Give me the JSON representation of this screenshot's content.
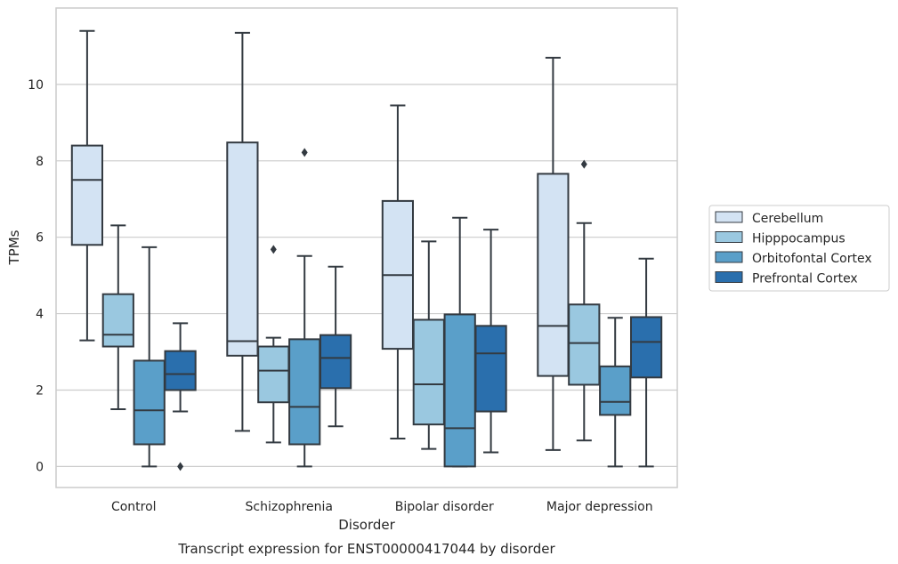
{
  "caption": "Transcript expression for ENST00000417044 by disorder",
  "chart_data": {
    "type": "box",
    "xlabel": "Disorder",
    "ylabel": "TPMs",
    "ylim": [
      -0.55,
      12.0
    ],
    "yticks": [
      0,
      2,
      4,
      6,
      8,
      10
    ],
    "grid": true,
    "legend_position": "right",
    "categories": [
      "Control",
      "Schizophrenia",
      "Bipolar disorder",
      "Major depression"
    ],
    "series": [
      {
        "name": "Cerebellum",
        "color": "#d3e3f3",
        "boxes": [
          {
            "whisker_low": 3.3,
            "q1": 5.8,
            "median": 7.5,
            "q3": 8.4,
            "whisker_high": 11.4,
            "outliers": []
          },
          {
            "whisker_low": 0.93,
            "q1": 2.9,
            "median": 3.28,
            "q3": 8.48,
            "whisker_high": 11.35,
            "outliers": []
          },
          {
            "whisker_low": 0.73,
            "q1": 3.08,
            "median": 5.01,
            "q3": 6.95,
            "whisker_high": 9.45,
            "outliers": []
          },
          {
            "whisker_low": 0.43,
            "q1": 2.37,
            "median": 3.68,
            "q3": 7.66,
            "whisker_high": 10.7,
            "outliers": []
          }
        ]
      },
      {
        "name": "Hipppocampus",
        "color": "#9ac8e0",
        "boxes": [
          {
            "whisker_low": 1.5,
            "q1": 3.14,
            "median": 3.45,
            "q3": 4.51,
            "whisker_high": 6.31,
            "outliers": []
          },
          {
            "whisker_low": 0.63,
            "q1": 1.68,
            "median": 2.51,
            "q3": 3.14,
            "whisker_high": 3.37,
            "outliers": [
              5.68
            ]
          },
          {
            "whisker_low": 0.46,
            "q1": 1.1,
            "median": 2.15,
            "q3": 3.84,
            "whisker_high": 5.89,
            "outliers": []
          },
          {
            "whisker_low": 0.68,
            "q1": 2.14,
            "median": 3.23,
            "q3": 4.24,
            "whisker_high": 6.37,
            "outliers": [
              7.91
            ]
          }
        ]
      },
      {
        "name": "Orbitofontal Cortex",
        "color": "#5a9fc9",
        "boxes": [
          {
            "whisker_low": 0.0,
            "q1": 0.58,
            "median": 1.47,
            "q3": 2.77,
            "whisker_high": 5.74,
            "outliers": []
          },
          {
            "whisker_low": 0.0,
            "q1": 0.58,
            "median": 1.56,
            "q3": 3.33,
            "whisker_high": 5.51,
            "outliers": [
              8.22
            ]
          },
          {
            "whisker_low": 0.0,
            "q1": 0.0,
            "median": 1.0,
            "q3": 3.98,
            "whisker_high": 6.51,
            "outliers": []
          },
          {
            "whisker_low": 0.0,
            "q1": 1.35,
            "median": 1.69,
            "q3": 2.62,
            "whisker_high": 3.89,
            "outliers": []
          }
        ]
      },
      {
        "name": "Prefrontal Cortex",
        "color": "#2a6fad",
        "boxes": [
          {
            "whisker_low": 1.44,
            "q1": 2.0,
            "median": 2.42,
            "q3": 3.02,
            "whisker_high": 3.75,
            "outliers": [
              0.0
            ]
          },
          {
            "whisker_low": 1.05,
            "q1": 2.05,
            "median": 2.84,
            "q3": 3.44,
            "whisker_high": 5.23,
            "outliers": []
          },
          {
            "whisker_low": 0.37,
            "q1": 1.44,
            "median": 2.96,
            "q3": 3.68,
            "whisker_high": 6.2,
            "outliers": []
          },
          {
            "whisker_low": 0.0,
            "q1": 2.33,
            "median": 3.26,
            "q3": 3.91,
            "whisker_high": 5.44,
            "outliers": []
          }
        ]
      }
    ]
  }
}
